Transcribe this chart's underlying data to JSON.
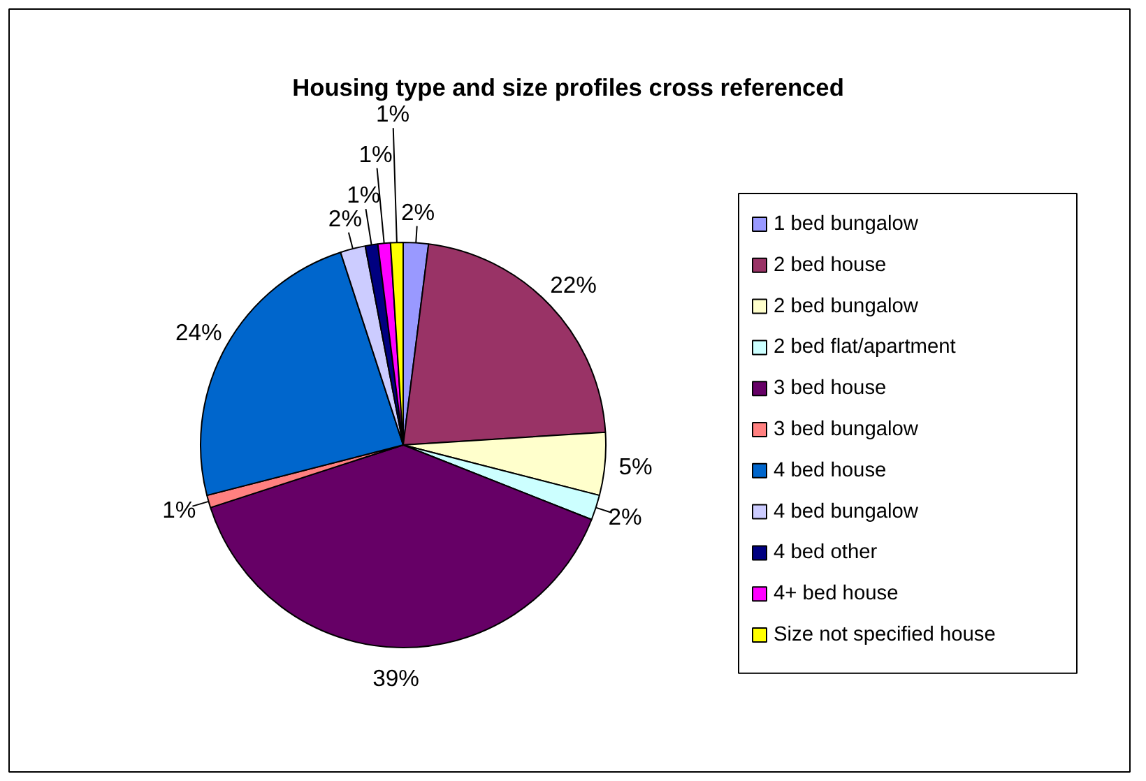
{
  "chart_data": {
    "type": "pie",
    "title": "Housing type and size profiles cross referenced",
    "categories": [
      "1 bed bungalow",
      "2 bed house",
      "2 bed bungalow",
      "2 bed flat/apartment",
      "3 bed house",
      "3 bed bungalow",
      "4 bed house",
      "4 bed bungalow",
      "4 bed other",
      "4+ bed house",
      "Size not specified house"
    ],
    "values": [
      2,
      22,
      5,
      2,
      39,
      1,
      24,
      2,
      1,
      1,
      1
    ],
    "value_labels": [
      "2%",
      "22%",
      "5%",
      "2%",
      "39%",
      "1%",
      "24%",
      "2%",
      "1%",
      "1%",
      "1%"
    ],
    "colors": [
      "#9999ff",
      "#993366",
      "#ffffcc",
      "#ccffff",
      "#660066",
      "#ff8080",
      "#0066cc",
      "#ccccff",
      "#000080",
      "#ff00ff",
      "#ffff00"
    ],
    "legend": "right"
  }
}
